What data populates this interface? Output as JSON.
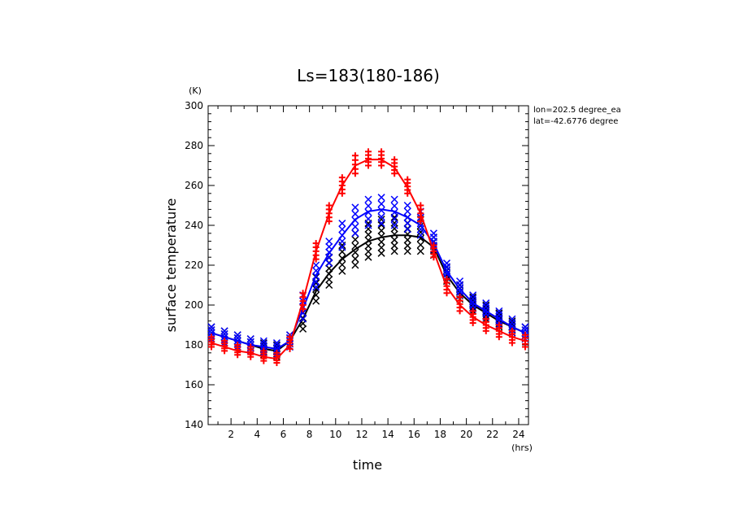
{
  "chart_data": {
    "type": "line",
    "title": "Ls=183(180-186)",
    "xlabel": "time",
    "ylabel": "surface temperature",
    "x_unit": "(hrs)",
    "y_unit": "(K)",
    "xlim": [
      0.25,
      24.75
    ],
    "ylim": [
      140,
      300
    ],
    "x_ticks": [
      2,
      4,
      6,
      8,
      10,
      12,
      14,
      16,
      18,
      20,
      22,
      24
    ],
    "y_ticks": [
      140,
      160,
      180,
      200,
      220,
      240,
      260,
      280,
      300
    ],
    "annotations": [
      "lon=202.5 degree_ea",
      "lat=-42.6776 degree"
    ],
    "x": [
      0.5,
      1.5,
      2.5,
      3.5,
      4.5,
      5.5,
      6.5,
      7.5,
      8.5,
      9.5,
      10.5,
      11.5,
      12.5,
      13.5,
      14.5,
      15.5,
      16.5,
      17.5,
      18.5,
      19.5,
      20.5,
      21.5,
      22.5,
      23.5,
      24.5
    ],
    "series": [
      {
        "color": "#000000",
        "marker": "x",
        "values": [
          186,
          184,
          182,
          180,
          178,
          177,
          182,
          193,
          207,
          216,
          223,
          228,
          232,
          234,
          235,
          235,
          234,
          229,
          215,
          206,
          200,
          196,
          192,
          189,
          186
        ],
        "scatter_spread": [
          [
            183,
            189
          ],
          [
            181,
            187
          ],
          [
            179,
            185
          ],
          [
            177,
            183
          ],
          [
            175,
            181
          ],
          [
            174,
            180
          ],
          [
            179,
            185
          ],
          [
            188,
            199
          ],
          [
            202,
            214
          ],
          [
            210,
            224
          ],
          [
            217,
            230
          ],
          [
            220,
            236
          ],
          [
            224,
            241
          ],
          [
            226,
            243
          ],
          [
            227,
            244
          ],
          [
            227,
            244
          ],
          [
            227,
            243
          ],
          [
            225,
            234
          ],
          [
            212,
            219
          ],
          [
            203,
            210
          ],
          [
            197,
            204
          ],
          [
            193,
            200
          ],
          [
            189,
            196
          ],
          [
            186,
            192
          ],
          [
            183,
            189
          ]
        ]
      },
      {
        "color": "#0000ff",
        "marker": "x",
        "values": [
          186,
          184,
          182,
          180,
          179,
          178,
          182,
          198,
          215,
          226,
          235,
          243,
          247,
          248,
          247,
          244,
          240,
          231,
          217,
          208,
          201,
          197,
          193,
          189,
          186
        ],
        "scatter_spread": [
          [
            183,
            189
          ],
          [
            181,
            187
          ],
          [
            179,
            185
          ],
          [
            177,
            183
          ],
          [
            176,
            182
          ],
          [
            175,
            181
          ],
          [
            179,
            185
          ],
          [
            193,
            205
          ],
          [
            209,
            220
          ],
          [
            221,
            232
          ],
          [
            229,
            241
          ],
          [
            236,
            249
          ],
          [
            240,
            253
          ],
          [
            241,
            254
          ],
          [
            240,
            253
          ],
          [
            238,
            250
          ],
          [
            235,
            247
          ],
          [
            228,
            236
          ],
          [
            214,
            221
          ],
          [
            205,
            212
          ],
          [
            198,
            205
          ],
          [
            194,
            201
          ],
          [
            190,
            197
          ],
          [
            186,
            193
          ],
          [
            183,
            189
          ]
        ]
      },
      {
        "color": "#ff0000",
        "marker": "+",
        "values": [
          181,
          179,
          177,
          176,
          174,
          173,
          180,
          202,
          227,
          246,
          260,
          270,
          273,
          273,
          269,
          259,
          246,
          227,
          209,
          200,
          194,
          190,
          187,
          184,
          182
        ],
        "scatter_spread": [
          [
            179,
            184
          ],
          [
            177,
            182
          ],
          [
            175,
            180
          ],
          [
            174,
            179
          ],
          [
            172,
            177
          ],
          [
            171,
            176
          ],
          [
            178,
            184
          ],
          [
            198,
            206
          ],
          [
            223,
            231
          ],
          [
            242,
            250
          ],
          [
            256,
            264
          ],
          [
            266,
            275
          ],
          [
            270,
            277
          ],
          [
            270,
            277
          ],
          [
            266,
            273
          ],
          [
            256,
            263
          ],
          [
            242,
            250
          ],
          [
            224,
            230
          ],
          [
            206,
            213
          ],
          [
            197,
            204
          ],
          [
            191,
            197
          ],
          [
            187,
            193
          ],
          [
            184,
            190
          ],
          [
            181,
            187
          ],
          [
            179,
            185
          ]
        ]
      }
    ]
  }
}
